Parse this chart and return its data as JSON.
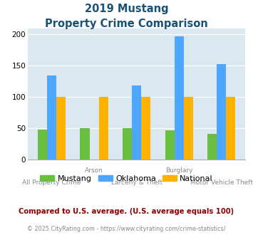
{
  "title_line1": "2019 Mustang",
  "title_line2": "Property Crime Comparison",
  "groups": [
    {
      "bottom": "All Property Crime",
      "top": null
    },
    {
      "bottom": null,
      "top": "Arson"
    },
    {
      "bottom": "Larceny & Theft",
      "top": null
    },
    {
      "bottom": null,
      "top": "Burglary"
    },
    {
      "bottom": "Motor Vehicle Theft",
      "top": null
    }
  ],
  "mustang": [
    48,
    50,
    50,
    47,
    41
  ],
  "oklahoma": [
    135,
    0,
    119,
    197,
    153
  ],
  "national": [
    100,
    100,
    100,
    100,
    100
  ],
  "colors": {
    "mustang": "#6abf40",
    "oklahoma": "#4da6ff",
    "national": "#ffb300"
  },
  "ylim": [
    0,
    210
  ],
  "yticks": [
    0,
    50,
    100,
    150,
    200
  ],
  "background_color": "#dce8ef",
  "title_color": "#1a5276",
  "legend_labels": [
    "Mustang",
    "Oklahoma",
    "National"
  ],
  "footnote": "Compared to U.S. average. (U.S. average equals 100)",
  "credit": "© 2025 CityRating.com - https://www.cityrating.com/crime-statistics/",
  "footnote_color": "#8B0000",
  "credit_color": "#888888",
  "bar_width": 0.22
}
